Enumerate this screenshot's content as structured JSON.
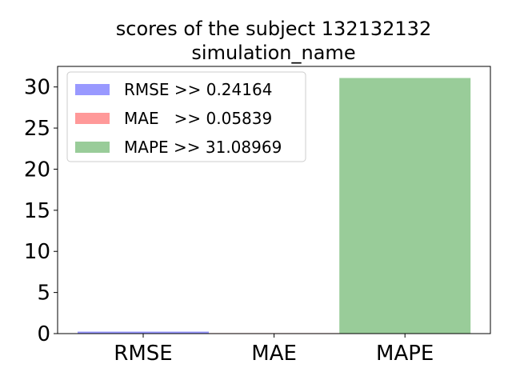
{
  "chart_data": {
    "type": "bar",
    "title": [
      "scores of the subject 132132132",
      "simulation_name"
    ],
    "categories": [
      "RMSE",
      "MAE",
      "MAPE"
    ],
    "values": [
      0.24164,
      0.05839,
      31.08969
    ],
    "colors": [
      "#9999ff",
      "#ff9999",
      "#99cc99"
    ],
    "ylim": [
      0,
      32.5
    ],
    "yticks": [
      0,
      5,
      10,
      15,
      20,
      25,
      30
    ],
    "grid": false,
    "legend": {
      "placement": "top-left",
      "entries": [
        "RMSE >> 0.24164",
        "MAE   >> 0.05839",
        "MAPE >> 31.08969"
      ]
    }
  }
}
